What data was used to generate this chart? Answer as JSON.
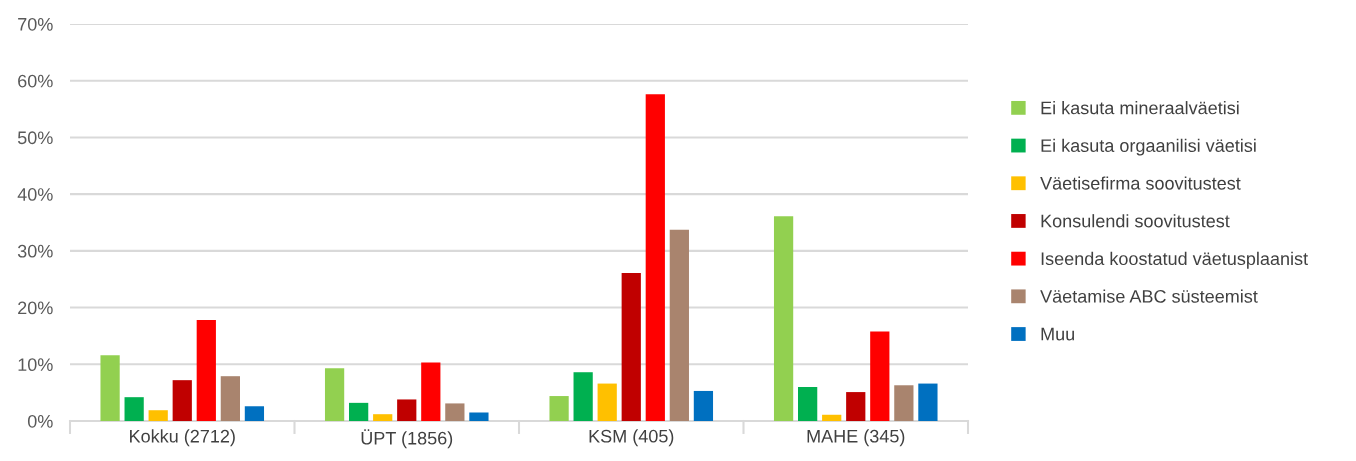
{
  "chart_data": {
    "type": "bar",
    "categories": [
      "Kokku (2712)",
      "ÜPT (1856)",
      "KSM (405)",
      "MAHE (345)"
    ],
    "series": [
      {
        "name": "Ei kasuta mineraalväetisi",
        "color": "#92d050",
        "values": [
          11.6,
          9.3,
          4.4,
          36.1
        ]
      },
      {
        "name": "Ei kasuta orgaanilisi väetisi",
        "color": "#00b050",
        "values": [
          4.2,
          3.2,
          8.6,
          6.0
        ]
      },
      {
        "name": "Väetisefirma soovitustest",
        "color": "#ffc000",
        "values": [
          1.9,
          1.2,
          6.6,
          1.1
        ]
      },
      {
        "name": "Konsulendi soovitustest",
        "color": "#c00000",
        "values": [
          7.2,
          3.8,
          26.1,
          5.1
        ]
      },
      {
        "name": "Iseenda koostatud väetusplaanist",
        "color": "#ff0000",
        "values": [
          17.8,
          10.3,
          57.6,
          15.8
        ]
      },
      {
        "name": "Väetamise ABC süsteemist",
        "color": "#a9846e",
        "values": [
          7.9,
          3.1,
          33.7,
          6.3
        ]
      },
      {
        "name": "Muu",
        "color": "#0070c0",
        "values": [
          2.6,
          1.5,
          5.3,
          6.6
        ]
      }
    ],
    "ylim": [
      0,
      70
    ],
    "yticks": [
      {
        "value": 0,
        "label": "0%"
      },
      {
        "value": 10,
        "label": "10%"
      },
      {
        "value": 20,
        "label": "20%"
      },
      {
        "value": 30,
        "label": "30%"
      },
      {
        "value": 40,
        "label": "40%"
      },
      {
        "value": 50,
        "label": "50%"
      },
      {
        "value": 60,
        "label": "60%"
      },
      {
        "value": 70,
        "label": "70%"
      }
    ],
    "grid": "y",
    "legend": "right"
  }
}
